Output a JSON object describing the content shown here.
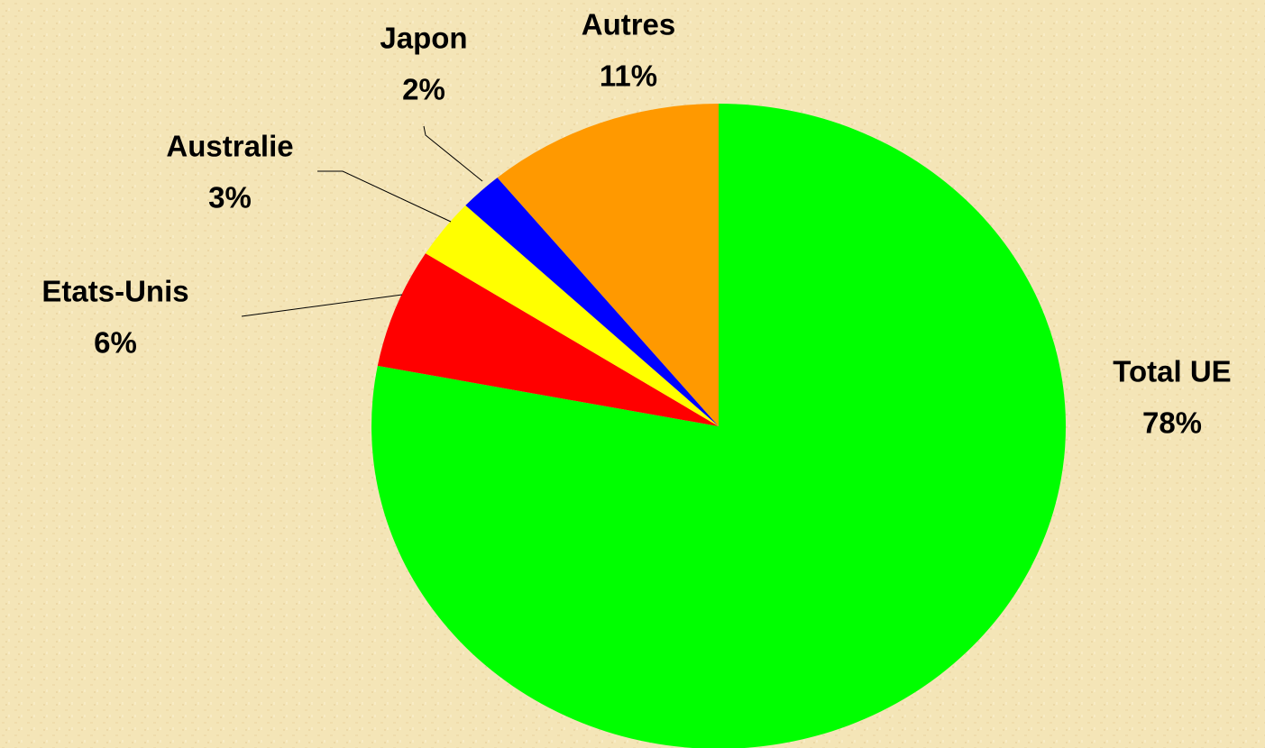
{
  "chart_data": {
    "type": "pie",
    "categories": [
      "Total UE",
      "Etats-Unis",
      "Australie",
      "Japon",
      "Autres"
    ],
    "values": [
      78,
      6,
      3,
      2,
      11
    ],
    "value_labels": [
      "78%",
      "6%",
      "3%",
      "2%",
      "11%"
    ],
    "colors": [
      "#00ff00",
      "#ff0000",
      "#ffff00",
      "#0000ff",
      "#ff9900"
    ]
  }
}
